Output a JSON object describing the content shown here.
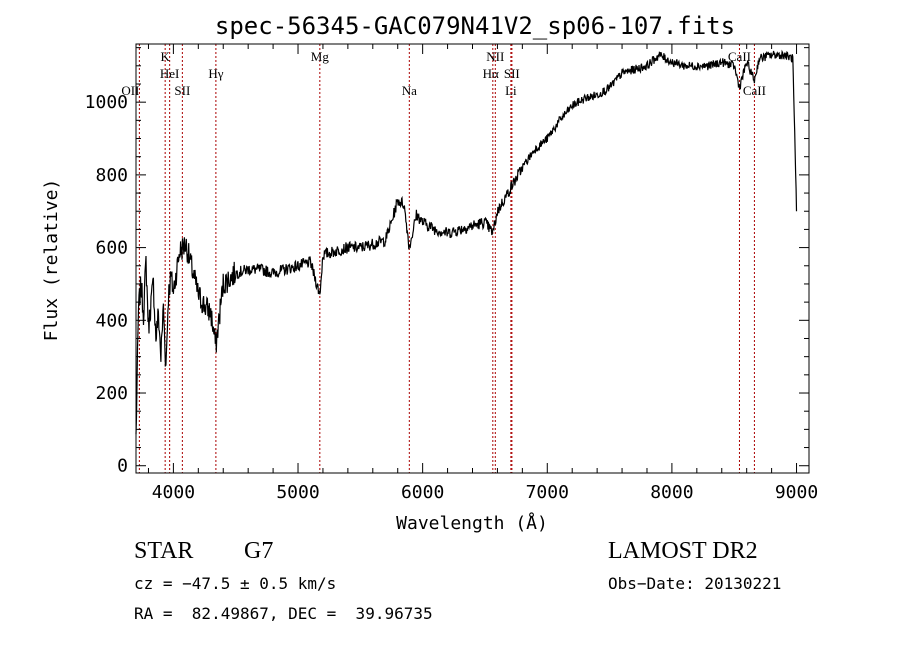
{
  "chart_data": {
    "type": "line",
    "title": "spec-56345-GAC079N41V2_sp06-107.fits",
    "xlabel": "Wavelength (Å)",
    "ylabel": "Flux (relative)",
    "xlim": [
      3700,
      9100
    ],
    "ylim": [
      -20,
      1160
    ],
    "xticks": [
      4000,
      5000,
      6000,
      7000,
      8000,
      9000
    ],
    "yticks": [
      0,
      200,
      400,
      600,
      800,
      1000
    ],
    "grid": false,
    "line_color": "#000000",
    "marker_color": "#aa0000",
    "spectral_lines": [
      {
        "label": "OII",
        "x": 3727,
        "row": 4,
        "anchor": "end"
      },
      {
        "label": "K",
        "x": 3934,
        "row": 1,
        "anchor": "middle"
      },
      {
        "label": "HeI",
        "x": 3970,
        "row": 2,
        "anchor": "middle"
      },
      {
        "label": "SII",
        "x": 4072,
        "row": 3,
        "anchor": "middle"
      },
      {
        "label": "Hγ",
        "x": 4341,
        "row": 2,
        "anchor": "middle"
      },
      {
        "label": "Mg",
        "x": 5175,
        "row": 1,
        "anchor": "middle"
      },
      {
        "label": "Na",
        "x": 5893,
        "row": 3,
        "anchor": "middle"
      },
      {
        "label": "NII",
        "x": 6583,
        "row": 1,
        "anchor": "middle"
      },
      {
        "label": "Hα",
        "x": 6563,
        "row": 2,
        "anchor": "middle"
      },
      {
        "label": "SII",
        "x": 6716,
        "row": 2,
        "anchor": "middle"
      },
      {
        "label": "Li",
        "x": 6708,
        "row": 3,
        "anchor": "middle"
      },
      {
        "label": "CaII",
        "x": 8542,
        "row": 1,
        "anchor": "middle"
      },
      {
        "label": "CaII",
        "x": 8662,
        "row": 3,
        "anchor": "middle"
      }
    ],
    "series": [
      {
        "x": [
          3700,
          3720,
          3740,
          3760,
          3780,
          3800,
          3820,
          3840,
          3860,
          3880,
          3900,
          3920,
          3940,
          3960,
          3980,
          4000,
          4050,
          4100,
          4150,
          4200,
          4250,
          4300,
          4340,
          4400,
          4500,
          4600,
          4700,
          4800,
          4900,
          5000,
          5100,
          5175,
          5200,
          5300,
          5400,
          5500,
          5600,
          5700,
          5750,
          5800,
          5850,
          5893,
          5950,
          6000,
          6100,
          6200,
          6300,
          6400,
          6500,
          6563,
          6600,
          6700,
          6800,
          6900,
          7000,
          7100,
          7200,
          7300,
          7400,
          7500,
          7600,
          7700,
          7800,
          7900,
          8000,
          8100,
          8200,
          8300,
          8400,
          8500,
          8542,
          8600,
          8662,
          8700,
          8800,
          8900,
          8970,
          9000
        ],
        "y": [
          80,
          430,
          500,
          420,
          560,
          380,
          450,
          500,
          350,
          420,
          300,
          440,
          270,
          470,
          520,
          480,
          590,
          610,
          540,
          470,
          440,
          420,
          330,
          500,
          530,
          540,
          540,
          530,
          540,
          550,
          560,
          470,
          580,
          590,
          600,
          600,
          610,
          620,
          670,
          730,
          720,
          600,
          690,
          670,
          650,
          640,
          650,
          660,
          670,
          640,
          700,
          760,
          820,
          870,
          900,
          950,
          990,
          1010,
          1020,
          1040,
          1080,
          1090,
          1100,
          1130,
          1110,
          1100,
          1100,
          1100,
          1110,
          1100,
          1040,
          1110,
          1060,
          1120,
          1130,
          1130,
          1120,
          700
        ]
      }
    ]
  },
  "info": {
    "object_type": "STAR",
    "subclass": "G7",
    "survey": "LAMOST DR2",
    "cz_line": "cz = −47.5 ± 0.5 km/s",
    "obs_date_line": "Obs−Date: 20130221",
    "radec_line": "RA =  82.49867, DEC =  39.96735"
  }
}
